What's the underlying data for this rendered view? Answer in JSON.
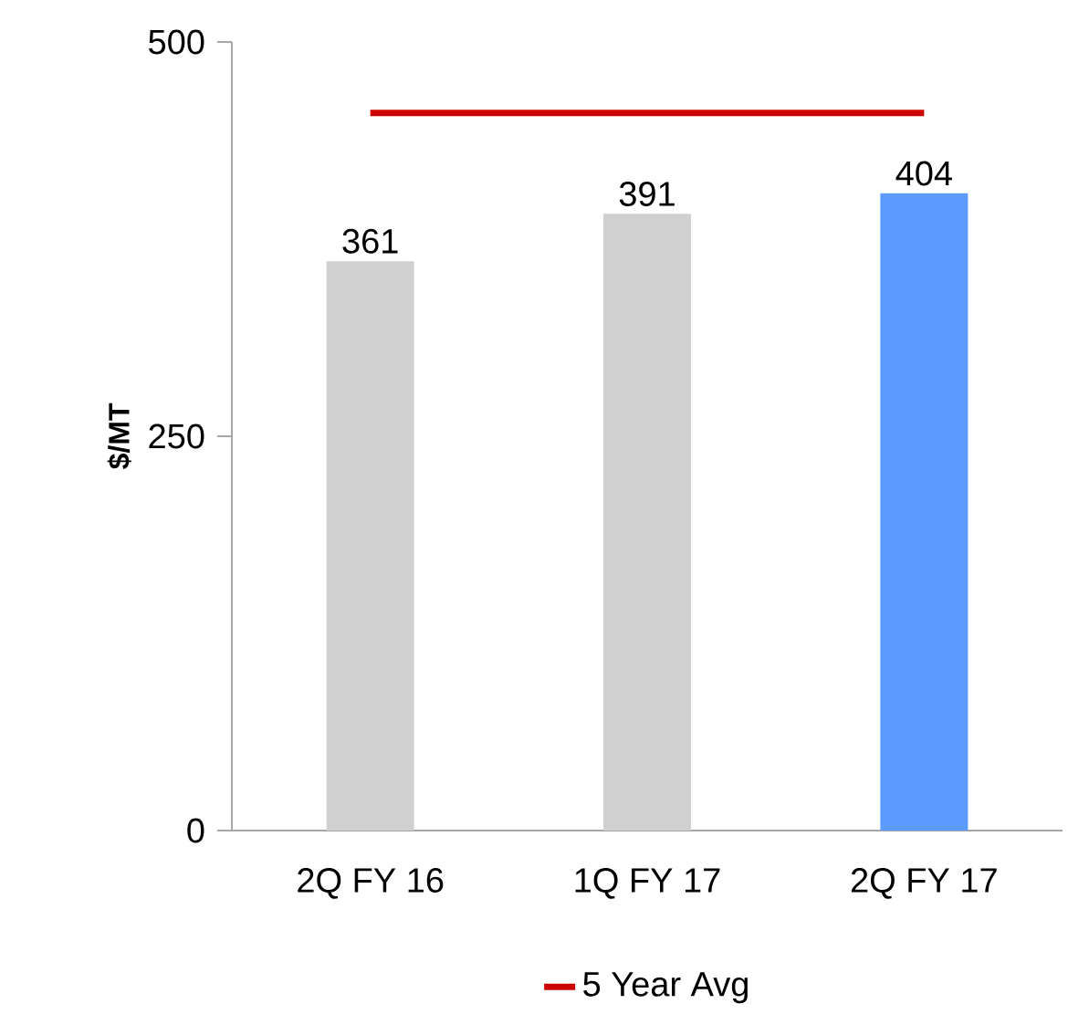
{
  "chart_data": {
    "type": "bar",
    "ylabel": "$/MT",
    "categories": [
      "2Q FY 16",
      "1Q FY 17",
      "2Q FY 17"
    ],
    "series": [
      {
        "colors": [
          "#d0d0d0",
          "#d0d0d0",
          "#5b9bff"
        ],
        "values": [
          361,
          391,
          404
        ],
        "value_labels": [
          "361",
          "391",
          "404"
        ]
      },
      {
        "type": "line",
        "name": "5 Year Avg",
        "color": "#cc0000",
        "values": [
          455,
          455,
          455
        ]
      }
    ],
    "ylim": [
      0,
      500
    ],
    "yticks": [
      0,
      250,
      500
    ],
    "grid": false,
    "legend": "bottom",
    "marker": "none",
    "line_style": "solid"
  }
}
